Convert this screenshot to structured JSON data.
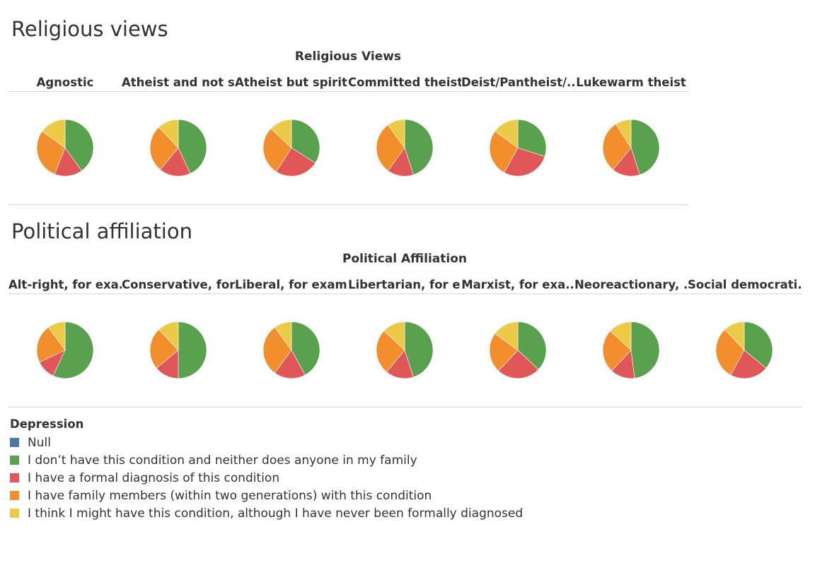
{
  "colors": {
    "Null": "#4e79a7",
    "none": "#59a14f",
    "formal": "#e15759",
    "family": "#f28e2b",
    "might": "#edc948"
  },
  "religious": {
    "title": "Religious views",
    "header": "Religious Views",
    "columns": [
      "Agnostic",
      "Atheist and not s..",
      "Atheist but spirit..",
      "Committed theist",
      "Deist/Pantheist/..",
      "Lukewarm theist"
    ]
  },
  "political": {
    "title": "Political affiliation",
    "header": "Political Affiliation",
    "columns": [
      "Alt-right, for exa..",
      "Conservative, for..",
      "Liberal, for exam..",
      "Libertarian, for e..",
      "Marxist, for exa..",
      "Neoreactionary, ..",
      "Social democrati.."
    ]
  },
  "legend": {
    "title": "Depression",
    "items": [
      {
        "key": "Null",
        "label": "Null"
      },
      {
        "key": "none",
        "label": "I don’t have this condition and neither does anyone in my family"
      },
      {
        "key": "formal",
        "label": "I have a formal diagnosis of this condition"
      },
      {
        "key": "family",
        "label": "I have family members (within two generations) with this condition"
      },
      {
        "key": "might",
        "label": "I think I might have this condition, although I have never been formally diagnosed"
      }
    ]
  },
  "chart_data": [
    {
      "type": "pie",
      "title": "Religious views",
      "header": "Religious Views",
      "legend_title": "Depression",
      "series_order": [
        "none",
        "formal",
        "family",
        "might"
      ],
      "pies": [
        {
          "category": "Agnostic",
          "values": [
            0.4,
            0.16,
            0.29,
            0.15
          ]
        },
        {
          "category": "Atheist and not s..",
          "values": [
            0.43,
            0.18,
            0.27,
            0.12
          ]
        },
        {
          "category": "Atheist but spirit..",
          "values": [
            0.34,
            0.25,
            0.28,
            0.13
          ]
        },
        {
          "category": "Committed theist",
          "values": [
            0.45,
            0.15,
            0.3,
            0.1
          ]
        },
        {
          "category": "Deist/Pantheist/..",
          "values": [
            0.3,
            0.28,
            0.27,
            0.15
          ]
        },
        {
          "category": "Lukewarm theist",
          "values": [
            0.45,
            0.16,
            0.3,
            0.09
          ]
        }
      ]
    },
    {
      "type": "pie",
      "title": "Political affiliation",
      "header": "Political Affiliation",
      "legend_title": "Depression",
      "series_order": [
        "none",
        "formal",
        "family",
        "might"
      ],
      "pies": [
        {
          "category": "Alt-right, for exa..",
          "values": [
            0.57,
            0.11,
            0.22,
            0.1
          ]
        },
        {
          "category": "Conservative, for..",
          "values": [
            0.5,
            0.14,
            0.24,
            0.12
          ]
        },
        {
          "category": "Liberal, for exam..",
          "values": [
            0.42,
            0.18,
            0.3,
            0.1
          ]
        },
        {
          "category": "Libertarian, for e..",
          "values": [
            0.45,
            0.16,
            0.26,
            0.13
          ]
        },
        {
          "category": "Marxist, for exa..",
          "values": [
            0.37,
            0.25,
            0.23,
            0.15
          ]
        },
        {
          "category": "Neoreactionary, ..",
          "values": [
            0.48,
            0.14,
            0.25,
            0.13
          ]
        },
        {
          "category": "Social democrati..",
          "values": [
            0.36,
            0.22,
            0.3,
            0.12
          ]
        }
      ]
    }
  ]
}
